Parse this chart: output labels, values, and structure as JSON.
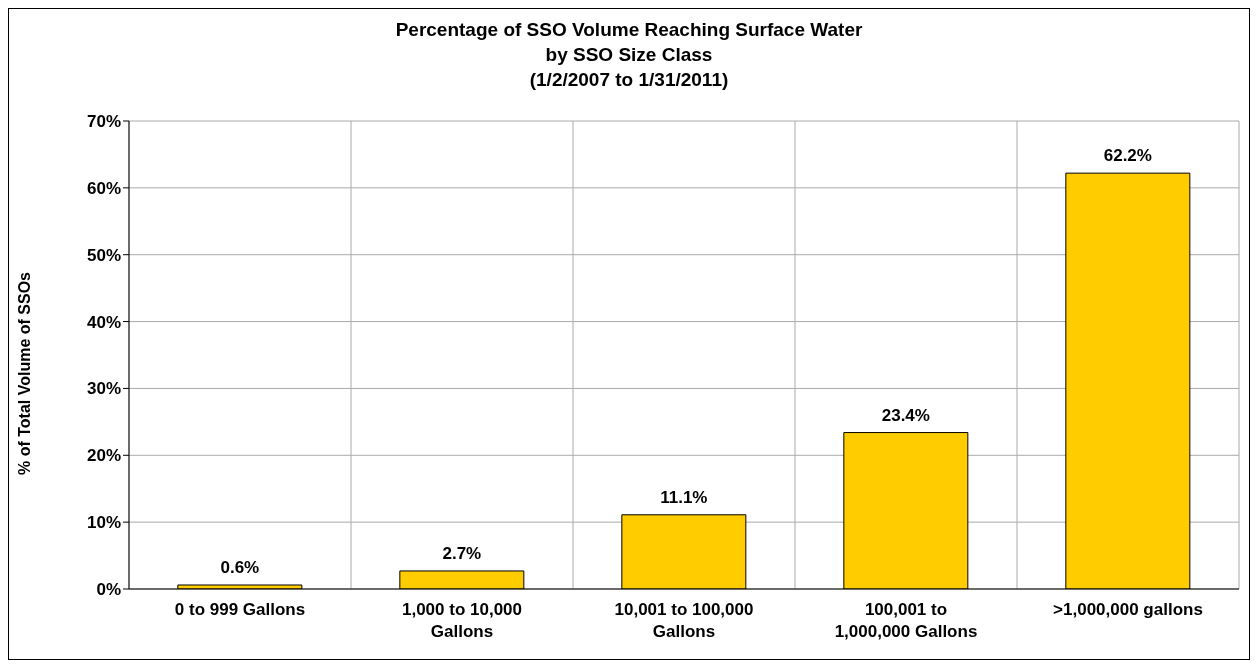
{
  "chart_data": {
    "type": "bar",
    "title": "Percentage of SSO Volume Reaching Surface Water\nby SSO Size Class\n(1/2/2007 to 1/31/2011)",
    "ylabel": "% of Total Volume of SSOs",
    "categories": [
      "0 to 999 Gallons",
      "1,000 to 10,000 Gallons",
      "10,001 to 100,000 Gallons",
      "100,001 to 1,000,000 Gallons",
      ">1,000,000 gallons"
    ],
    "values": [
      0.6,
      2.7,
      11.1,
      23.4,
      62.2
    ],
    "value_labels": [
      "0.6%",
      "2.7%",
      "11.1%",
      "23.4%",
      "62.2%"
    ],
    "color": "#ffcc00",
    "ylim": [
      0,
      70
    ],
    "yticks": [
      {
        "value": 0,
        "label": "0%"
      },
      {
        "value": 10,
        "label": "10%"
      },
      {
        "value": 20,
        "label": "20%"
      },
      {
        "value": 30,
        "label": "30%"
      },
      {
        "value": 40,
        "label": "40%"
      },
      {
        "value": 50,
        "label": "50%"
      },
      {
        "value": 60,
        "label": "60%"
      },
      {
        "value": 70,
        "label": "70%"
      }
    ],
    "grid": true,
    "legend": false
  }
}
